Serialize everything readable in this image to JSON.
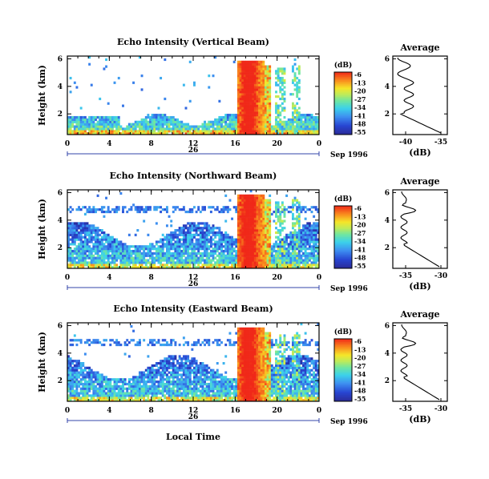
{
  "chart_data": [
    {
      "type": "heatmap",
      "title": "Echo Intensity (Vertical Beam)",
      "ylabel": "Height (km)",
      "yticks": [
        "2",
        "4",
        "6"
      ],
      "xticks": [
        "0",
        "4",
        "8",
        "12",
        "16",
        "20",
        "0"
      ],
      "xlim": [
        0,
        24
      ],
      "ylim": [
        0.5,
        6.2
      ],
      "date_center": "26",
      "date_label": "Sep 1996",
      "colorbar": {
        "unit": "(dB)",
        "ticks": [
          "-6",
          "-13",
          "-20",
          "-27",
          "-34",
          "-41",
          "-48",
          "-55"
        ]
      },
      "profile": {
        "title": "Average",
        "xlabel": "(dB)",
        "xticks": [
          "-40",
          "-35"
        ],
        "yticks": [
          "2",
          "4",
          "6"
        ]
      }
    },
    {
      "type": "heatmap",
      "title": "Echo Intensity (Northward Beam)",
      "ylabel": "Height (km)",
      "yticks": [
        "2",
        "4",
        "6"
      ],
      "xticks": [
        "0",
        "4",
        "8",
        "12",
        "16",
        "20",
        "0"
      ],
      "xlim": [
        0,
        24
      ],
      "ylim": [
        0.5,
        6.2
      ],
      "date_center": "26",
      "date_label": "Sep 1996",
      "colorbar": {
        "unit": "(dB)",
        "ticks": [
          "-6",
          "-13",
          "-20",
          "-27",
          "-34",
          "-41",
          "-48",
          "-55"
        ]
      },
      "profile": {
        "title": "Average",
        "xlabel": "(dB)",
        "xticks": [
          "-35",
          "-30"
        ],
        "yticks": [
          "2",
          "4",
          "6"
        ]
      }
    },
    {
      "type": "heatmap",
      "title": "Echo Intensity (Eastward Beam)",
      "ylabel": "Height (km)",
      "yticks": [
        "2",
        "4",
        "6"
      ],
      "xticks": [
        "0",
        "4",
        "8",
        "12",
        "16",
        "20",
        "0"
      ],
      "xlim": [
        0,
        24
      ],
      "ylim": [
        0.5,
        6.2
      ],
      "date_center": "26",
      "date_label": "Sep 1996",
      "xlabel": "Local Time",
      "colorbar": {
        "unit": "(dB)",
        "ticks": [
          "-6",
          "-13",
          "-20",
          "-27",
          "-34",
          "-41",
          "-48",
          "-55"
        ]
      },
      "profile": {
        "title": "Average",
        "xlabel": "(dB)",
        "xticks": [
          "-35",
          "-30"
        ],
        "yticks": [
          "2",
          "4",
          "6"
        ]
      }
    }
  ]
}
